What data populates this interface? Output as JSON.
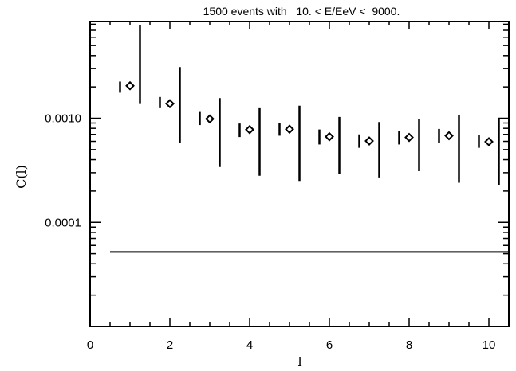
{
  "chart_data": {
    "type": "scatter",
    "title": "1500 events with   10. < E/EeV <  9000.",
    "xlabel": "l",
    "ylabel": "C(l)",
    "xlim": [
      0,
      10.5
    ],
    "ylim": [
      1e-05,
      0.0085
    ],
    "yscale": "log",
    "grid": false,
    "x_ticks": [
      0,
      2,
      4,
      6,
      8,
      10
    ],
    "x_tick_labels": [
      "0",
      "2",
      "4",
      "6",
      "8",
      "10"
    ],
    "y_tick_labels": [
      {
        "value": 0.001,
        "label": "0.0010"
      },
      {
        "value": 0.0001,
        "label": "0.0001"
      }
    ],
    "series": [
      {
        "marker": "diamond",
        "points": [
          {
            "x": 1,
            "y": 0.00205
          },
          {
            "x": 2,
            "y": 0.00138
          },
          {
            "x": 3,
            "y": 0.000985
          },
          {
            "x": 4,
            "y": 0.000778
          },
          {
            "x": 5,
            "y": 0.000785
          },
          {
            "x": 6,
            "y": 0.000665
          },
          {
            "x": 7,
            "y": 0.000605
          },
          {
            "x": 8,
            "y": 0.000655
          },
          {
            "x": 9,
            "y": 0.00068
          },
          {
            "x": 10,
            "y": 0.000595
          }
        ]
      }
    ],
    "small_bars": [
      {
        "x": 0.75,
        "low": 0.00176,
        "high": 0.00225
      },
      {
        "x": 1.75,
        "low": 0.00125,
        "high": 0.0016
      },
      {
        "x": 2.75,
        "low": 0.00086,
        "high": 0.00115
      },
      {
        "x": 3.75,
        "low": 0.00066,
        "high": 0.00089
      },
      {
        "x": 4.75,
        "low": 0.00068,
        "high": 0.0009
      },
      {
        "x": 5.75,
        "low": 0.00056,
        "high": 0.00078
      },
      {
        "x": 6.75,
        "low": 0.00052,
        "high": 0.0007
      },
      {
        "x": 7.75,
        "low": 0.00056,
        "high": 0.00076
      },
      {
        "x": 8.75,
        "low": 0.00058,
        "high": 0.00079
      },
      {
        "x": 9.75,
        "low": 0.00052,
        "high": 0.00069
      }
    ],
    "large_bars": [
      {
        "x": 1.25,
        "low": 0.00137,
        "high": 0.0078
      },
      {
        "x": 2.25,
        "low": 0.00058,
        "high": 0.0031
      },
      {
        "x": 3.25,
        "low": 0.00034,
        "high": 0.00156
      },
      {
        "x": 4.25,
        "low": 0.00028,
        "high": 0.00125
      },
      {
        "x": 5.25,
        "low": 0.00025,
        "high": 0.00132
      },
      {
        "x": 6.25,
        "low": 0.00029,
        "high": 0.00103
      },
      {
        "x": 7.25,
        "low": 0.00027,
        "high": 0.00092
      },
      {
        "x": 8.25,
        "low": 0.00031,
        "high": 0.00098
      },
      {
        "x": 9.25,
        "low": 0.00024,
        "high": 0.00108
      },
      {
        "x": 10.25,
        "low": 0.00023,
        "high": 0.00098
      }
    ],
    "reference_line": {
      "y": 5.2e-05,
      "x_start": 0.5,
      "x_end": 10.5
    }
  }
}
